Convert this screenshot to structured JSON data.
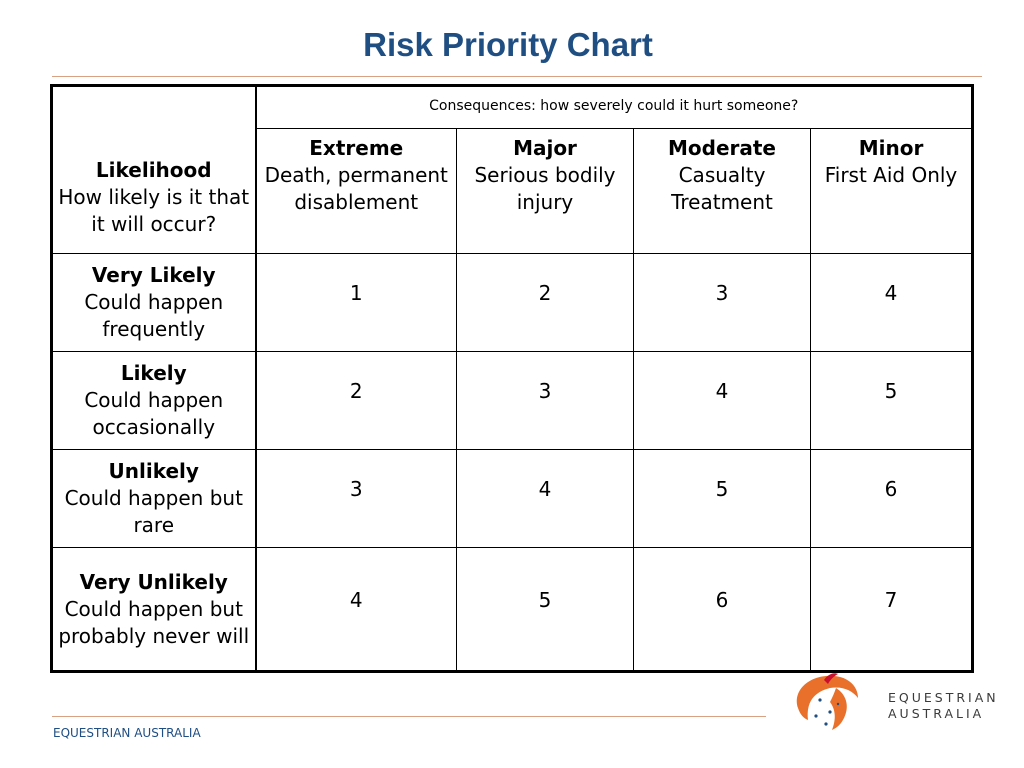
{
  "title": "Risk Priority Chart",
  "colors": {
    "title": "#1f4e82",
    "rule": "#d9a184",
    "logo_orange": "#e8702a",
    "logo_red": "#c8102e",
    "footer": "#1f4e82"
  },
  "table": {
    "consequences_header": "Consequences: how severely could it hurt someone?",
    "likelihood_header": {
      "title": "Likelihood",
      "subtitle": "How likely is it that it will occur?"
    },
    "columns": [
      {
        "title": "Extreme",
        "desc": "Death, permanent disablement"
      },
      {
        "title": "Major",
        "desc": "Serious bodily injury"
      },
      {
        "title": "Moderate",
        "desc": "Casualty Treatment"
      },
      {
        "title": "Minor",
        "desc": "First Aid Only"
      }
    ],
    "rows": [
      {
        "title": "Very Likely",
        "desc": "Could happen frequently",
        "values": [
          "1",
          "2",
          "3",
          "4"
        ]
      },
      {
        "title": "Likely",
        "desc": "Could happen occasionally",
        "values": [
          "2",
          "3",
          "4",
          "5"
        ]
      },
      {
        "title": "Unlikely",
        "desc": "Could happen but rare",
        "values": [
          "3",
          "4",
          "5",
          "6"
        ]
      },
      {
        "title": "Very Unlikely",
        "desc": "Could happen but probably never will",
        "values": [
          "4",
          "5",
          "6",
          "7"
        ]
      }
    ]
  },
  "footer": {
    "org": "EQUESTRIAN AUSTRALIA"
  },
  "logo": {
    "line1": "EQUESTRIAN",
    "line2": "AUSTRALIA",
    "icon": "horse-head-stars-icon"
  }
}
